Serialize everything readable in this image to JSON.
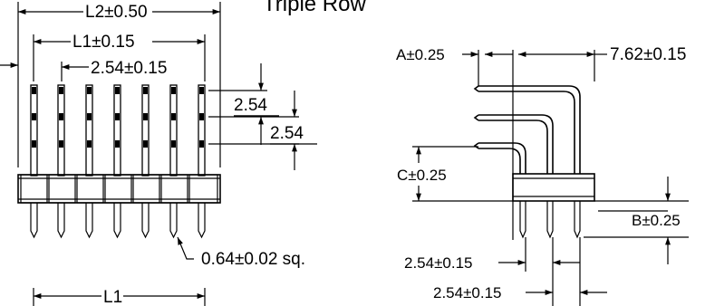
{
  "title": "Triple Row",
  "front_view": {
    "l2_label": "L2±0.50",
    "l1_label": "L1±0.15",
    "pitch_label": "2.54±0.15",
    "row_pitch_upper": "2.54",
    "row_pitch_lower": "2.54",
    "pin_size_label": "0.64±0.02 sq.",
    "bottom_l1_label": "L1"
  },
  "side_view": {
    "a_label": "A±0.25",
    "length_label": "7.62±0.15",
    "c_label": "C±0.25",
    "b_label": "B±0.25",
    "pitch1_label": "2.54±0.15",
    "pitch2_label": "2.54±0.15"
  }
}
